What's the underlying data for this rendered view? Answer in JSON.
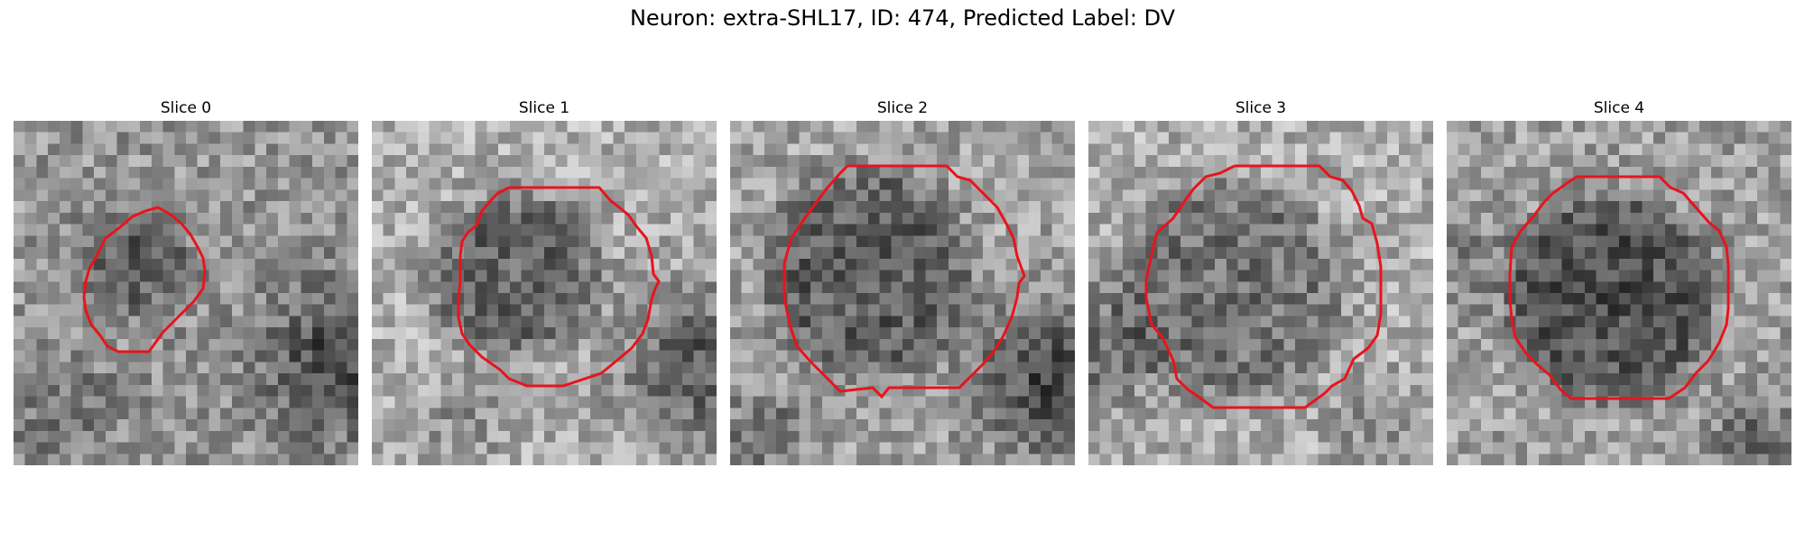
{
  "figure": {
    "title": "Neuron: extra-SHL17, ID: 474, Predicted Label: DV"
  },
  "contour_color": "#e8141c",
  "panels": [
    {
      "title": "Slice 0"
    },
    {
      "title": "Slice 1"
    },
    {
      "title": "Slice 2"
    },
    {
      "title": "Slice 3"
    },
    {
      "title": "Slice 4"
    }
  ]
}
